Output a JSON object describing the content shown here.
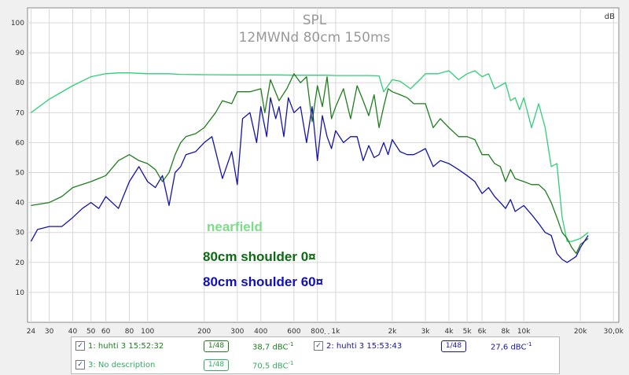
{
  "chart_data": {
    "type": "line",
    "title": "SPL",
    "subtitle": "12MWNd 80cm 150ms",
    "unit_label": "dB",
    "x_unit": "Hz",
    "x_scale": "log",
    "xlim": [
      23,
      32000
    ],
    "ylim": [
      0,
      105
    ],
    "grid": true,
    "x_ticks": [
      {
        "v": 24,
        "l": "24"
      },
      {
        "v": 30,
        "l": "30"
      },
      {
        "v": 40,
        "l": "40"
      },
      {
        "v": 50,
        "l": "50"
      },
      {
        "v": 60,
        "l": "60"
      },
      {
        "v": 80,
        "l": "80"
      },
      {
        "v": 100,
        "l": "100"
      },
      {
        "v": 200,
        "l": "200"
      },
      {
        "v": 300,
        "l": "300"
      },
      {
        "v": 400,
        "l": "400"
      },
      {
        "v": 600,
        "l": "600"
      },
      {
        "v": 800,
        "l": "800"
      },
      {
        "v": 1000,
        "l": "1k"
      },
      {
        "v": 2000,
        "l": "2k"
      },
      {
        "v": 3000,
        "l": "3k"
      },
      {
        "v": 4000,
        "l": "4k"
      },
      {
        "v": 5000,
        "l": "5k"
      },
      {
        "v": 6000,
        "l": "6k"
      },
      {
        "v": 8000,
        "l": "8k"
      },
      {
        "v": 10000,
        "l": "10k"
      },
      {
        "v": 20000,
        "l": "20k"
      },
      {
        "v": 30000,
        "l": "30,0k"
      }
    ],
    "y_ticks": [
      10,
      20,
      30,
      40,
      50,
      60,
      70,
      80,
      90,
      100
    ],
    "annotations": [
      {
        "text": "nearfield",
        "color": "#7ddc8a"
      },
      {
        "text": "80cm shoulder 0¤",
        "color": "#0b6a12"
      },
      {
        "text": "80cm shoulder 60¤",
        "color": "#1212b4"
      }
    ],
    "series": [
      {
        "color": "#2fcf78",
        "width": 1.3,
        "x": [
          24,
          30,
          40,
          50,
          60,
          70,
          80,
          100,
          130,
          150,
          200,
          300,
          400,
          500,
          600,
          700,
          800,
          900,
          1000,
          1200,
          1500,
          1700,
          1800,
          2000,
          2200,
          2500,
          2800,
          3000,
          3500,
          4000,
          4500,
          5000,
          5500,
          6000,
          6500,
          7000,
          7500,
          8000,
          8500,
          9000,
          9500,
          10000,
          11000,
          12000,
          13000,
          14000,
          15000,
          16000,
          17000,
          18000,
          20000,
          22000
        ],
        "y": [
          70,
          74.5,
          79,
          82,
          83,
          83.3,
          83.3,
          83,
          83,
          82.8,
          82.7,
          82.6,
          82.6,
          82.6,
          82.5,
          82.5,
          82.5,
          82.5,
          82.4,
          82.4,
          82.4,
          82.3,
          77,
          81,
          80.5,
          78,
          81,
          83,
          83,
          84,
          81,
          83,
          84,
          82,
          83,
          78,
          79,
          80,
          74,
          75,
          71,
          75,
          65,
          73,
          65,
          52,
          53,
          35,
          27,
          27,
          28,
          30
        ]
      },
      {
        "color": "#1e7e1e",
        "width": 1.3,
        "x": [
          24,
          30,
          35,
          40,
          50,
          60,
          70,
          80,
          90,
          100,
          110,
          120,
          130,
          140,
          150,
          160,
          180,
          200,
          230,
          250,
          280,
          300,
          350,
          400,
          420,
          450,
          500,
          550,
          600,
          650,
          700,
          750,
          800,
          850,
          900,
          950,
          1000,
          1100,
          1200,
          1300,
          1400,
          1500,
          1600,
          1700,
          1800,
          1900,
          2000,
          2200,
          2400,
          2600,
          2800,
          3000,
          3300,
          3600,
          4000,
          4500,
          5000,
          5500,
          6000,
          6500,
          7000,
          7500,
          8000,
          8500,
          9000,
          10000,
          11000,
          12000,
          13000,
          14000,
          15000,
          16000,
          17000,
          18000,
          19000,
          20000,
          21000,
          22000
        ],
        "y": [
          39,
          40,
          42,
          45,
          47,
          49,
          54,
          56,
          54,
          53,
          51,
          47,
          50,
          56,
          60,
          62,
          63,
          65,
          70,
          74,
          73,
          77,
          77,
          78,
          70,
          81,
          74,
          78,
          83,
          80,
          82,
          67,
          79,
          72,
          82,
          68,
          72,
          78,
          68,
          79,
          74,
          69,
          76,
          65,
          72,
          78,
          77,
          76,
          75,
          73,
          73,
          73,
          65,
          68,
          65,
          62,
          62,
          61,
          56,
          56,
          53,
          52,
          47,
          51,
          48,
          47,
          46,
          46,
          44,
          40,
          35,
          30,
          28,
          25,
          23,
          26,
          27,
          28
        ]
      },
      {
        "color": "#1414a8",
        "width": 1.3,
        "x": [
          24,
          26,
          30,
          35,
          40,
          45,
          50,
          55,
          60,
          70,
          80,
          90,
          100,
          110,
          120,
          130,
          140,
          150,
          160,
          180,
          200,
          220,
          250,
          280,
          300,
          320,
          350,
          380,
          400,
          430,
          450,
          480,
          500,
          530,
          560,
          600,
          650,
          700,
          750,
          800,
          850,
          900,
          950,
          1000,
          1100,
          1200,
          1300,
          1400,
          1500,
          1600,
          1700,
          1800,
          1900,
          2000,
          2200,
          2400,
          2600,
          2800,
          3000,
          3300,
          3600,
          4000,
          4500,
          5000,
          5500,
          6000,
          6500,
          7000,
          7500,
          8000,
          8500,
          9000,
          10000,
          11000,
          12000,
          13000,
          14000,
          15000,
          16000,
          17000,
          18000,
          19000,
          20000,
          22000
        ],
        "y": [
          27,
          31,
          32,
          32,
          35,
          38,
          40,
          38,
          42,
          38,
          47,
          52,
          47,
          45,
          49,
          39,
          50,
          52,
          56,
          57,
          60,
          62,
          48,
          57,
          46,
          68,
          70,
          60,
          72,
          62,
          75,
          68,
          72,
          62,
          75,
          70,
          72,
          60,
          72,
          54,
          69,
          62,
          58,
          64,
          60,
          62,
          62,
          54,
          59,
          55,
          56,
          60,
          56,
          61,
          57,
          56,
          56,
          57,
          58,
          52,
          54,
          53,
          51,
          49,
          47,
          43,
          45,
          42,
          40,
          38,
          41,
          37,
          39,
          36,
          33,
          30,
          29,
          23,
          21,
          20,
          21,
          22,
          25,
          29
        ]
      }
    ]
  },
  "legend": {
    "row1_a": {
      "label": "1: huhti 3 15:52:32",
      "smooth": "1/48",
      "value": "38,7 dBC",
      "sup": "-1"
    },
    "row1_b": {
      "label": "2: huhti 3 15:53:43",
      "smooth": "1/48",
      "value": "27,6 dBC",
      "sup": "-1"
    },
    "row2_a": {
      "label": "3: No description",
      "smooth": "1/48",
      "value": "70,5 dBC",
      "sup": "-1"
    },
    "check_mark": "✓"
  }
}
